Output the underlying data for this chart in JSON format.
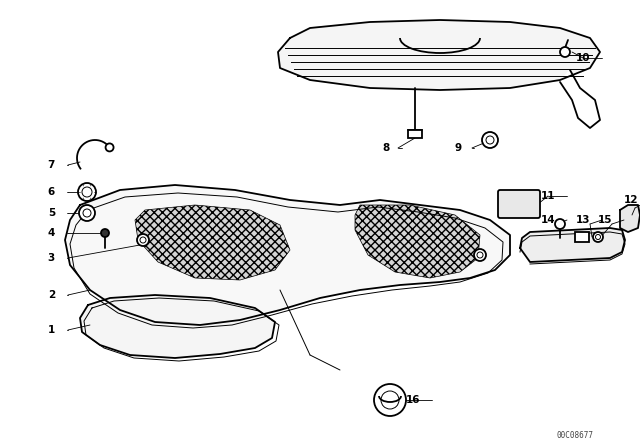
{
  "background_color": "#ffffff",
  "line_color": "#000000",
  "watermark": "00C08677",
  "lw_main": 1.3,
  "lw_thin": 0.7,
  "lw_label": 0.6,
  "label_fontsize": 7.5
}
